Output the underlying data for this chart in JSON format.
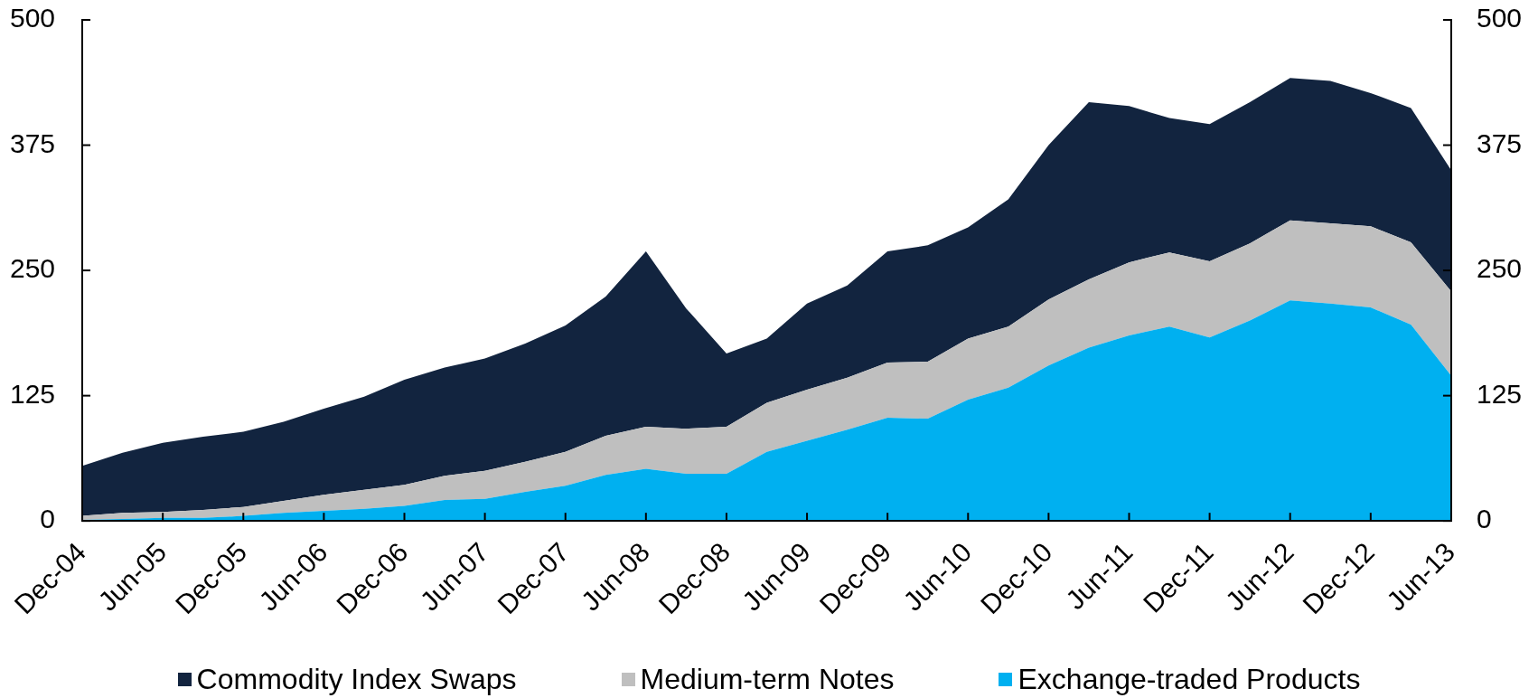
{
  "chart_data": {
    "type": "area",
    "stacked": true,
    "categories": [
      "Dec-04",
      null,
      "Jun-05",
      null,
      "Dec-05",
      null,
      "Jun-06",
      null,
      "Dec-06",
      null,
      "Jun-07",
      null,
      "Dec-07",
      null,
      "Jun-08",
      null,
      "Dec-08",
      null,
      "Jun-09",
      null,
      "Dec-09",
      null,
      "Jun-10",
      null,
      "Dec-10",
      null,
      "Jun-11",
      null,
      "Dec-11",
      null,
      "Jun-12",
      null,
      "Dec-12",
      null,
      "Jun-13"
    ],
    "series": [
      {
        "name": "Exchange-traded Products",
        "color": "#00b0f0",
        "values": [
          1,
          2,
          3,
          3,
          5,
          8,
          10,
          12,
          15,
          21,
          22,
          29,
          35,
          46,
          52,
          47,
          47,
          69,
          80,
          91,
          103,
          102,
          121,
          133,
          155,
          173,
          185,
          194,
          183,
          200,
          220,
          217,
          213,
          196,
          145
        ]
      },
      {
        "name": "Medium-term Notes",
        "color": "#bfbfbf",
        "values": [
          4,
          6,
          6,
          8,
          9,
          12,
          16,
          19,
          21,
          24,
          28,
          30,
          34,
          39,
          42,
          45,
          47,
          49,
          51,
          52,
          55,
          57,
          61,
          61,
          66,
          68,
          73,
          74,
          76,
          77,
          80,
          80,
          81,
          82,
          84
        ]
      },
      {
        "name": "Commodity Index Swaps",
        "color": "#12243f",
        "values": [
          50,
          60,
          69,
          73,
          75,
          79,
          86,
          93,
          105,
          108,
          112,
          118,
          126,
          139,
          175,
          120,
          73,
          64,
          86,
          92,
          111,
          116,
          111,
          127,
          154,
          177,
          156,
          134,
          137,
          141,
          142,
          142,
          133,
          134,
          121
        ]
      }
    ],
    "ylim": [
      0,
      500
    ],
    "yticks": [
      0,
      125,
      250,
      375,
      500
    ],
    "y2lim": [
      0,
      500
    ],
    "y2ticks": [
      0,
      125,
      250,
      375,
      500
    ],
    "grid": false,
    "legend": "bottom"
  }
}
